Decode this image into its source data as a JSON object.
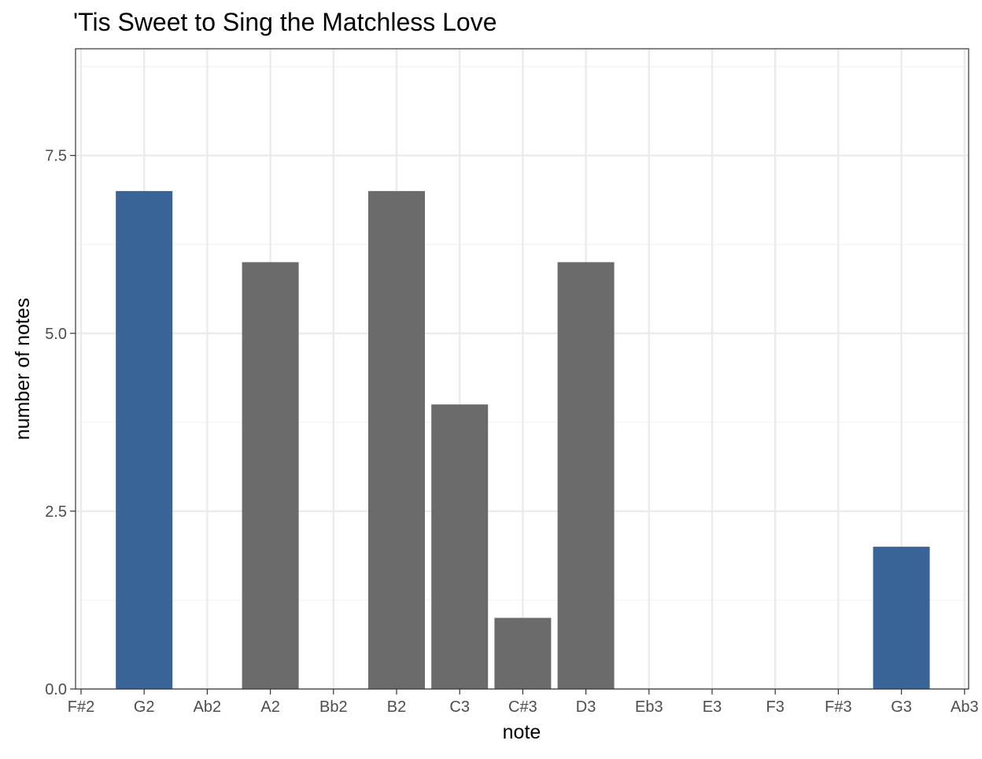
{
  "chart_data": {
    "type": "bar",
    "title": "'Tis Sweet to Sing the Matchless Love",
    "xlabel": "note",
    "ylabel": "number of notes",
    "categories": [
      "F#2",
      "G2",
      "Ab2",
      "A2",
      "Bb2",
      "B2",
      "C3",
      "C#3",
      "D3",
      "Eb3",
      "E3",
      "F3",
      "F#3",
      "G3",
      "Ab3"
    ],
    "values": [
      0,
      7,
      0,
      6,
      0,
      7,
      4,
      1,
      6,
      0,
      0,
      0,
      0,
      2,
      0
    ],
    "highlighted": [
      "G2",
      "G3"
    ],
    "colors": {
      "default_bar": "#6b6b6b",
      "highlight_bar": "#386498",
      "grid_major": "#ebebeb",
      "grid_minor": "#f2f2f2",
      "panel_border": "#333333"
    },
    "yticks": [
      0.0,
      2.5,
      5.0,
      7.5
    ],
    "ytick_labels": [
      "0.0",
      "2.5",
      "5.0",
      "7.5"
    ],
    "ylim": [
      0,
      9
    ],
    "grid": true,
    "legend": "none"
  }
}
